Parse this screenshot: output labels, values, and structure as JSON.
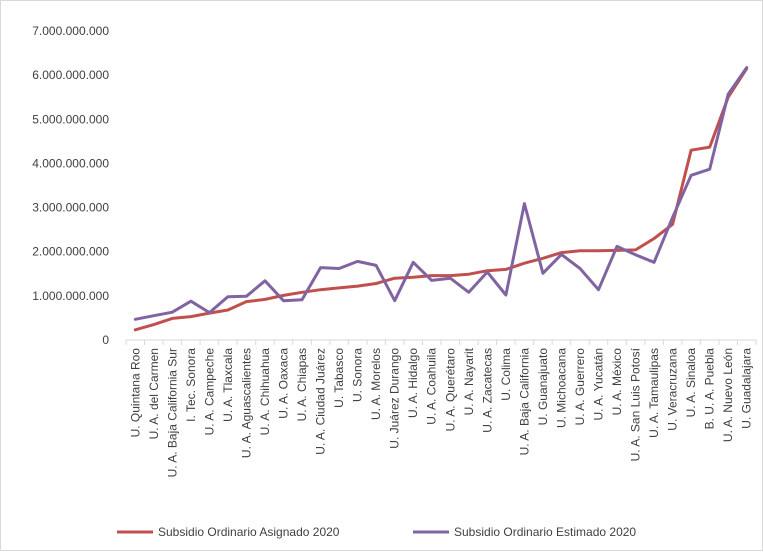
{
  "chart_data": {
    "type": "line",
    "title": "",
    "xlabel": "",
    "ylabel": "",
    "ylim": [
      0,
      7000000000
    ],
    "yticks": [
      0,
      1000000000,
      2000000000,
      3000000000,
      4000000000,
      5000000000,
      6000000000,
      7000000000
    ],
    "ytick_labels": [
      "0",
      "1.000.000.000",
      "2.000.000.000",
      "3.000.000.000",
      "4.000.000.000",
      "5.000.000.000",
      "6.000.000.000",
      "7.000.000.000"
    ],
    "grid": false,
    "legend_position": "bottom",
    "categories": [
      "U. Quintana Roo",
      "U. A. del Carmen",
      "U. A. Baja California Sur",
      "I. Tec. Sonora",
      "U. A. Campeche",
      "U. A. Tlaxcala",
      "U. A. Aguascalientes",
      "U. A. Chihuahua",
      "U. A. Oaxaca",
      "U. A. Chiapas",
      "U. A. Ciudad Juárez",
      "U. Tabasco",
      "U. Sonora",
      "U. A. Morelos",
      "U. Juárez Durango",
      "U. A. Hidalgo",
      "U. A. Coahuila",
      "U. A. Querétaro",
      "U. A. Nayarit",
      "U. A. Zacatecas",
      "U. Colima",
      "U. A. Baja California",
      "U. Guanajuato",
      "U. Michoacana",
      "U. A. Guerrero",
      "U. A. Yucatán",
      "U. A. México",
      "U. A. San Luis Potosí",
      "U. A. Tamaulipas",
      "U. Veracruzana",
      "U. A. Sinaloa",
      "B. U. A. Puebla",
      "U. A. Nuevo León",
      "U. Guadalajara"
    ],
    "series": [
      {
        "name": "Subsidio Ordinario Asignado 2020",
        "color": "#c0504d",
        "values": [
          230000000,
          350000000,
          490000000,
          530000000,
          610000000,
          680000000,
          870000000,
          920000000,
          1010000000,
          1080000000,
          1140000000,
          1180000000,
          1220000000,
          1280000000,
          1400000000,
          1420000000,
          1460000000,
          1460000000,
          1490000000,
          1570000000,
          1600000000,
          1740000000,
          1850000000,
          1980000000,
          2020000000,
          2020000000,
          2030000000,
          2040000000,
          2300000000,
          2620000000,
          4300000000,
          4370000000,
          5500000000,
          6150000000
        ]
      },
      {
        "name": "Subsidio Ordinario Estimado 2020",
        "color": "#8064a2",
        "values": [
          470000000,
          550000000,
          630000000,
          880000000,
          620000000,
          980000000,
          990000000,
          1340000000,
          890000000,
          910000000,
          1640000000,
          1620000000,
          1780000000,
          1690000000,
          890000000,
          1760000000,
          1350000000,
          1400000000,
          1080000000,
          1540000000,
          1020000000,
          3090000000,
          1510000000,
          1940000000,
          1620000000,
          1140000000,
          2120000000,
          1930000000,
          1760000000,
          2780000000,
          3730000000,
          3870000000,
          5570000000,
          6170000000
        ]
      }
    ]
  }
}
